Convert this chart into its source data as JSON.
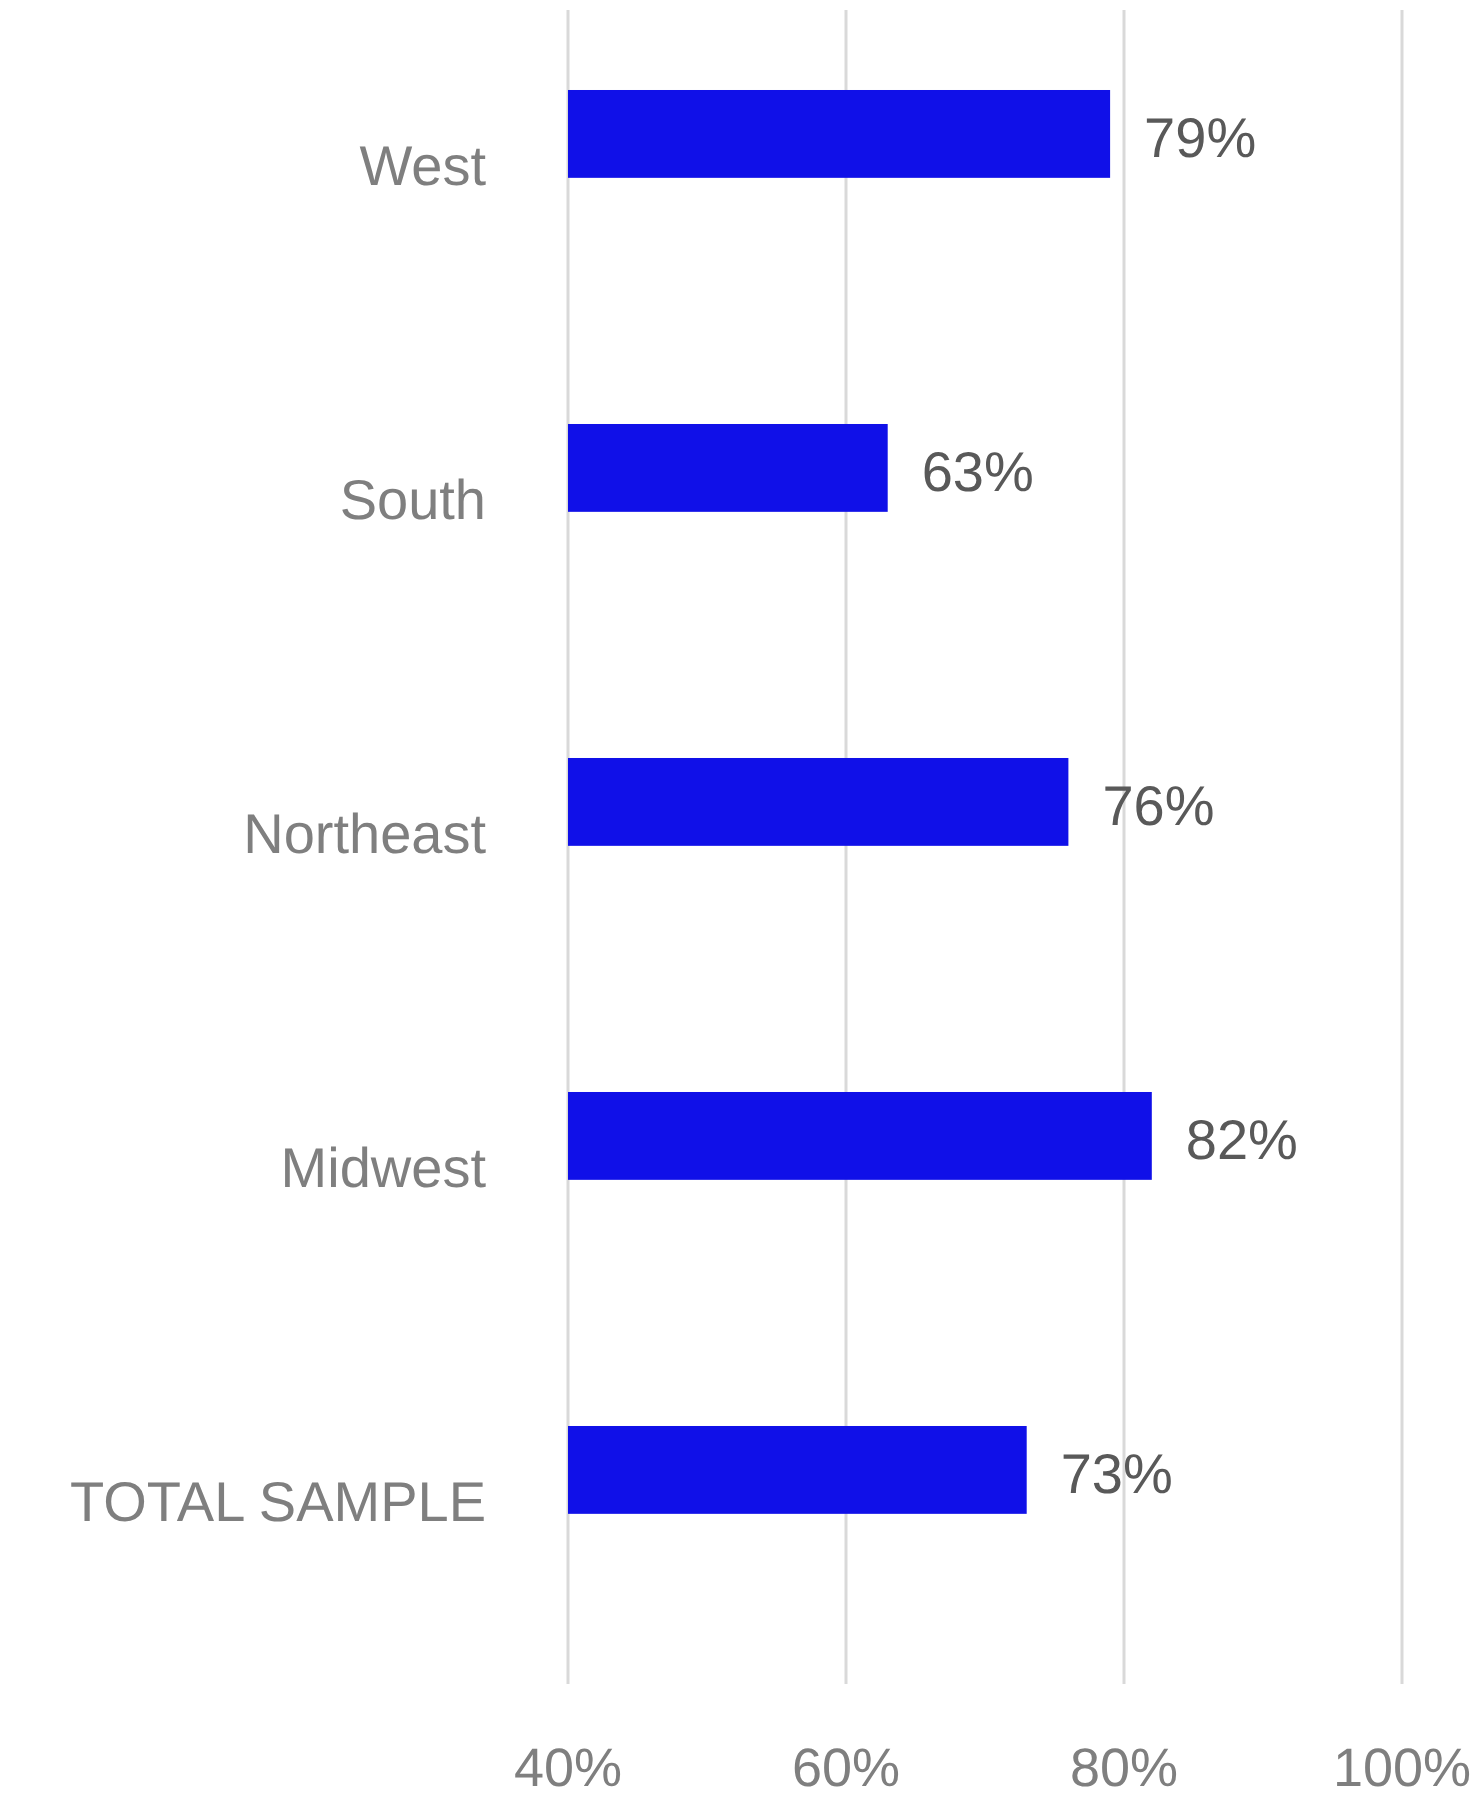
{
  "chart_data": {
    "type": "bar",
    "orientation": "horizontal",
    "categories": [
      "West",
      "South",
      "Northeast",
      "Midwest",
      "TOTAL SAMPLE"
    ],
    "values": [
      79,
      63,
      76,
      82,
      73
    ],
    "value_labels": [
      "79%",
      "63%",
      "76%",
      "82%",
      "73%"
    ],
    "color": "#1010e8",
    "xlim": [
      40,
      100
    ],
    "xticks": [
      {
        "value": 40,
        "label": "40%"
      },
      {
        "value": 60,
        "label": "60%"
      },
      {
        "value": 80,
        "label": "80%"
      },
      {
        "value": 100,
        "label": "100%"
      }
    ],
    "grid": "x"
  }
}
